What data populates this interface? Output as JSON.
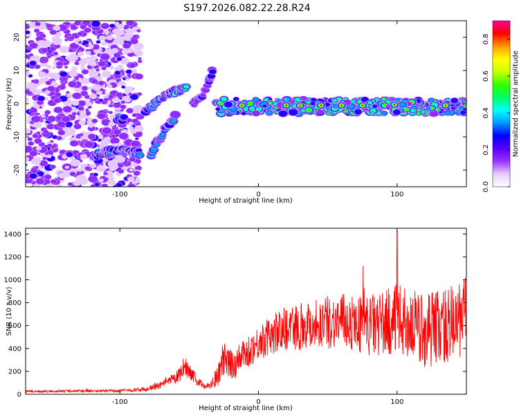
{
  "title": "S197.2026.082.22.28.R24",
  "chart_data": [
    {
      "type": "heatmap",
      "name": "spectrogram",
      "xlabel": "Height of straight line (km)",
      "ylabel": "Frequency (Hz)",
      "xlim": [
        -168,
        150
      ],
      "ylim": [
        -25,
        25
      ],
      "xticks": [
        -100,
        0,
        100
      ],
      "yticks": [
        -20,
        -10,
        0,
        10,
        20
      ],
      "colorbar": {
        "label": "Normalized spectral amplitude",
        "range": [
          0,
          0.9
        ],
        "ticks": [
          0.0,
          0.2,
          0.4,
          0.6,
          0.8
        ],
        "colors": [
          "#ffffff",
          "#e6ccff",
          "#9933ff",
          "#5a00ff",
          "#0000ff",
          "#0099ff",
          "#00ffff",
          "#00ff66",
          "#33ff00",
          "#ccff00",
          "#ffff00",
          "#ff9900",
          "#ff0000",
          "#ff0099"
        ]
      },
      "features": [
        {
          "name": "noise region",
          "x": [
            -168,
            -85
          ],
          "y": [
            -25,
            25
          ],
          "amplitude": 0.12
        },
        {
          "name": "lower branch",
          "points": [
            [
              -117,
              -15.5
            ],
            [
              -110,
              -14.5
            ],
            [
              -100,
              -14
            ],
            [
              -92,
              -14
            ],
            [
              -85,
              -15
            ]
          ],
          "amplitude": 0.3
        },
        {
          "name": "short weak segment",
          "points": [
            [
              -102,
              -4.5
            ],
            [
              -97,
              -4.5
            ]
          ],
          "amplitude": 0.3
        },
        {
          "name": "rising branch",
          "points": [
            [
              -82,
              -2.5
            ],
            [
              -75,
              0
            ],
            [
              -68,
              2.5
            ],
            [
              -58,
              4
            ],
            [
              -52,
              5
            ]
          ],
          "amplitude": 0.35
        },
        {
          "name": "descending branch",
          "points": [
            [
              -78,
              -16
            ],
            [
              -72,
              -11
            ],
            [
              -66,
              -7
            ],
            [
              -60,
              -4
            ]
          ],
          "amplitude": 0.3
        },
        {
          "name": "upper arc",
          "points": [
            [
              -47,
              0
            ],
            [
              -40,
              3
            ],
            [
              -35,
              8
            ],
            [
              -33,
              10
            ]
          ],
          "amplitude": 0.2
        },
        {
          "name": "main line",
          "points": [
            [
              -30,
              0
            ],
            [
              0,
              -1
            ],
            [
              50,
              -0.5
            ],
            [
              100,
              0
            ],
            [
              150,
              -1
            ]
          ],
          "amplitude": 0.55
        },
        {
          "name": "peaks",
          "x": [
            -12,
            20,
            30,
            45,
            60,
            75,
            98,
            135
          ],
          "y": [
            -0.5,
            -0.5,
            -0.5,
            -0.5,
            -0.5,
            -0.5,
            -0.3,
            -0.5
          ],
          "amplitude": 0.82
        }
      ]
    },
    {
      "type": "line",
      "name": "snr",
      "xlabel": "Height of straight line (km)",
      "ylabel": "SNR (10 * v/v)",
      "xlim": [
        -168,
        150
      ],
      "ylim": [
        0,
        1450
      ],
      "xticks": [
        -100,
        0,
        100
      ],
      "yticks": [
        0,
        200,
        400,
        600,
        800,
        1000,
        1200,
        1400
      ],
      "color": "#ff0000",
      "envelope": {
        "x": [
          -168,
          -150,
          -120,
          -100,
          -80,
          -70,
          -60,
          -55,
          -52,
          -48,
          -44,
          -40,
          -35,
          -30,
          -25,
          -20,
          -15,
          -10,
          0,
          10,
          20,
          30,
          40,
          50,
          60,
          70,
          80,
          90,
          100,
          110,
          120,
          130,
          140,
          150
        ],
        "mean": [
          25,
          25,
          30,
          30,
          45,
          80,
          140,
          190,
          240,
          180,
          110,
          80,
          70,
          140,
          300,
          240,
          300,
          340,
          450,
          520,
          580,
          600,
          620,
          630,
          640,
          620,
          600,
          620,
          650,
          600,
          560,
          600,
          600,
          700
        ],
        "amplitude": [
          10,
          10,
          12,
          12,
          20,
          30,
          50,
          70,
          90,
          60,
          40,
          30,
          30,
          80,
          150,
          150,
          140,
          130,
          150,
          170,
          200,
          210,
          220,
          230,
          240,
          250,
          270,
          290,
          310,
          320,
          330,
          340,
          350,
          330
        ]
      },
      "peak": {
        "x": 100,
        "y": 1430
      }
    }
  ]
}
